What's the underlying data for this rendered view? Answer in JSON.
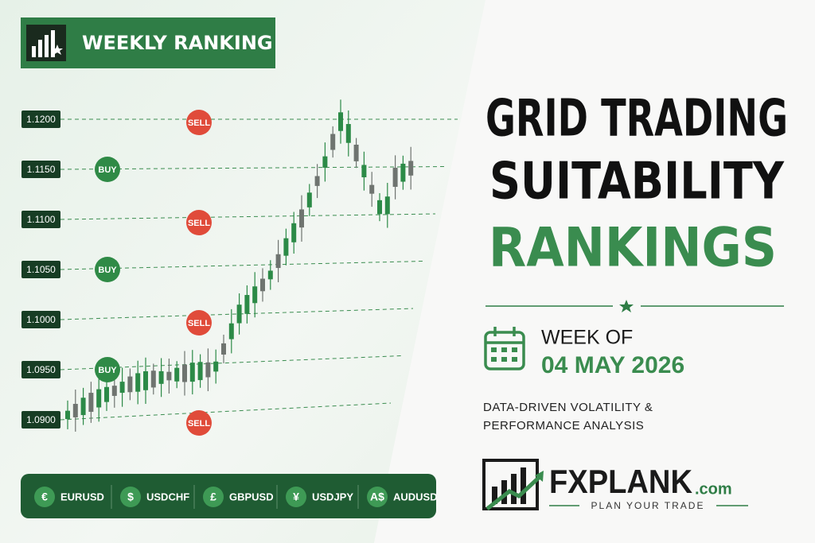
{
  "header": {
    "badge": "WEEKLY RANKING"
  },
  "grid": {
    "levels": [
      {
        "price": "1.1200",
        "signal": "SELL"
      },
      {
        "price": "1.1150",
        "signal": "BUY"
      },
      {
        "price": "1.1100",
        "signal": "SELL"
      },
      {
        "price": "1.1050",
        "signal": "BUY"
      },
      {
        "price": "1.1000",
        "signal": "SELL"
      },
      {
        "price": "1.0950",
        "signal": "BUY"
      },
      {
        "price": "1.0900",
        "signal": "SELL"
      }
    ]
  },
  "currencies": [
    {
      "symbol": "€",
      "pair": "EURUSD"
    },
    {
      "symbol": "$",
      "pair": "USDCHF"
    },
    {
      "symbol": "£",
      "pair": "GBPUSD"
    },
    {
      "symbol": "¥",
      "pair": "USDJPY"
    },
    {
      "symbol": "A$",
      "pair": "AUDUSD"
    }
  ],
  "title": {
    "line1": "GRID TRADING",
    "line2": "SUITABILITY",
    "line3": "RANKINGS"
  },
  "week": {
    "label": "WEEK OF",
    "date": "04 MAY 2026"
  },
  "description": [
    "DATA-DRIVEN VOLATILITY &",
    "PERFORMANCE ANALYSIS"
  ],
  "logo": {
    "name": "FXPLANK",
    "domain": ".com",
    "tagline": "PLAN YOUR TRADE"
  }
}
